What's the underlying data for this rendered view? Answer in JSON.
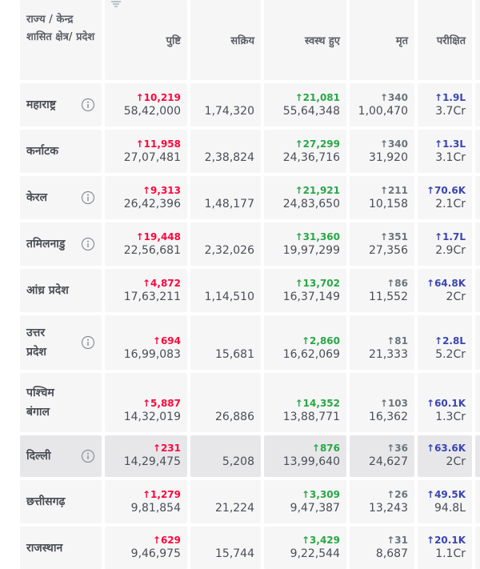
{
  "table": {
    "headers": [
      "राज्य / केन्द्र शासित क्षेत्र/ प्रदेश",
      "पुष्टि",
      "सक्रिय",
      "स्वस्थ हुए",
      "मृत",
      "परीक्षित"
    ],
    "rows": [
      {
        "state": "महाराष्ट्र",
        "info_icon": true,
        "confirmed_delta": "↑10,219",
        "confirmed": "58,42,000",
        "active": "1,74,320",
        "recovered_delta": "↑21,081",
        "recovered": "55,64,348",
        "deceased_delta": "↑340",
        "deceased": "1,00,470",
        "tested_delta": "↑1.9L",
        "tested": "3.7Cr"
      },
      {
        "state": "कर्नाटक",
        "info_icon": false,
        "confirmed_delta": "↑11,958",
        "confirmed": "27,07,481",
        "active": "2,38,824",
        "recovered_delta": "↑27,299",
        "recovered": "24,36,716",
        "deceased_delta": "↑340",
        "deceased": "31,920",
        "tested_delta": "↑1.3L",
        "tested": "3.1Cr"
      },
      {
        "state": "केरल",
        "info_icon": true,
        "confirmed_delta": "↑9,313",
        "confirmed": "26,42,396",
        "active": "1,48,177",
        "recovered_delta": "↑21,921",
        "recovered": "24,83,650",
        "deceased_delta": "↑211",
        "deceased": "10,158",
        "tested_delta": "↑70.6K",
        "tested": "2.1Cr"
      },
      {
        "state": "तमिलनाडु",
        "info_icon": true,
        "confirmed_delta": "↑19,448",
        "confirmed": "22,56,681",
        "active": "2,32,026",
        "recovered_delta": "↑31,360",
        "recovered": "19,97,299",
        "deceased_delta": "↑351",
        "deceased": "27,356",
        "tested_delta": "↑1.7L",
        "tested": "2.9Cr"
      },
      {
        "state": "आंध्र प्रदेश",
        "info_icon": false,
        "confirmed_delta": "↑4,872",
        "confirmed": "17,63,211",
        "active": "1,14,510",
        "recovered_delta": "↑13,702",
        "recovered": "16,37,149",
        "deceased_delta": "↑86",
        "deceased": "11,552",
        "tested_delta": "↑64.8K",
        "tested": "2Cr"
      },
      {
        "state": "उत्तर प्रदेश",
        "info_icon": true,
        "confirmed_delta": "↑694",
        "confirmed": "16,99,083",
        "active": "15,681",
        "recovered_delta": "↑2,860",
        "recovered": "16,62,069",
        "deceased_delta": "↑81",
        "deceased": "21,333",
        "tested_delta": "↑2.8L",
        "tested": "5.2Cr"
      },
      {
        "state": "पश्चिम बंगाल",
        "info_icon": false,
        "confirmed_delta": "↑5,887",
        "confirmed": "14,32,019",
        "active": "26,886",
        "recovered_delta": "↑14,352",
        "recovered": "13,88,771",
        "deceased_delta": "↑103",
        "deceased": "16,362",
        "tested_delta": "↑60.1K",
        "tested": "1.3Cr"
      },
      {
        "state": "दिल्ली",
        "info_icon": true,
        "highlight": true,
        "confirmed_delta": "↑231",
        "confirmed": "14,29,475",
        "active": "5,208",
        "recovered_delta": "↑876",
        "recovered": "13,99,640",
        "deceased_delta": "↑36",
        "deceased": "24,627",
        "tested_delta": "↑63.6K",
        "tested": "2Cr"
      },
      {
        "state": "छत्तीसगढ़",
        "info_icon": false,
        "confirmed_delta": "↑1,279",
        "confirmed": "9,81,854",
        "active": "21,224",
        "recovered_delta": "↑3,309",
        "recovered": "9,47,387",
        "deceased_delta": "↑26",
        "deceased": "13,243",
        "tested_delta": "↑49.5K",
        "tested": "94.8L"
      },
      {
        "state": "राजस्थान",
        "info_icon": false,
        "confirmed_delta": "↑629",
        "confirmed": "9,46,975",
        "active": "15,744",
        "recovered_delta": "↑3,429",
        "recovered": "9,22,544",
        "deceased_delta": "↑31",
        "deceased": "8,687",
        "tested_delta": "↑20.1K",
        "tested": "1.1Cr"
      }
    ]
  }
}
